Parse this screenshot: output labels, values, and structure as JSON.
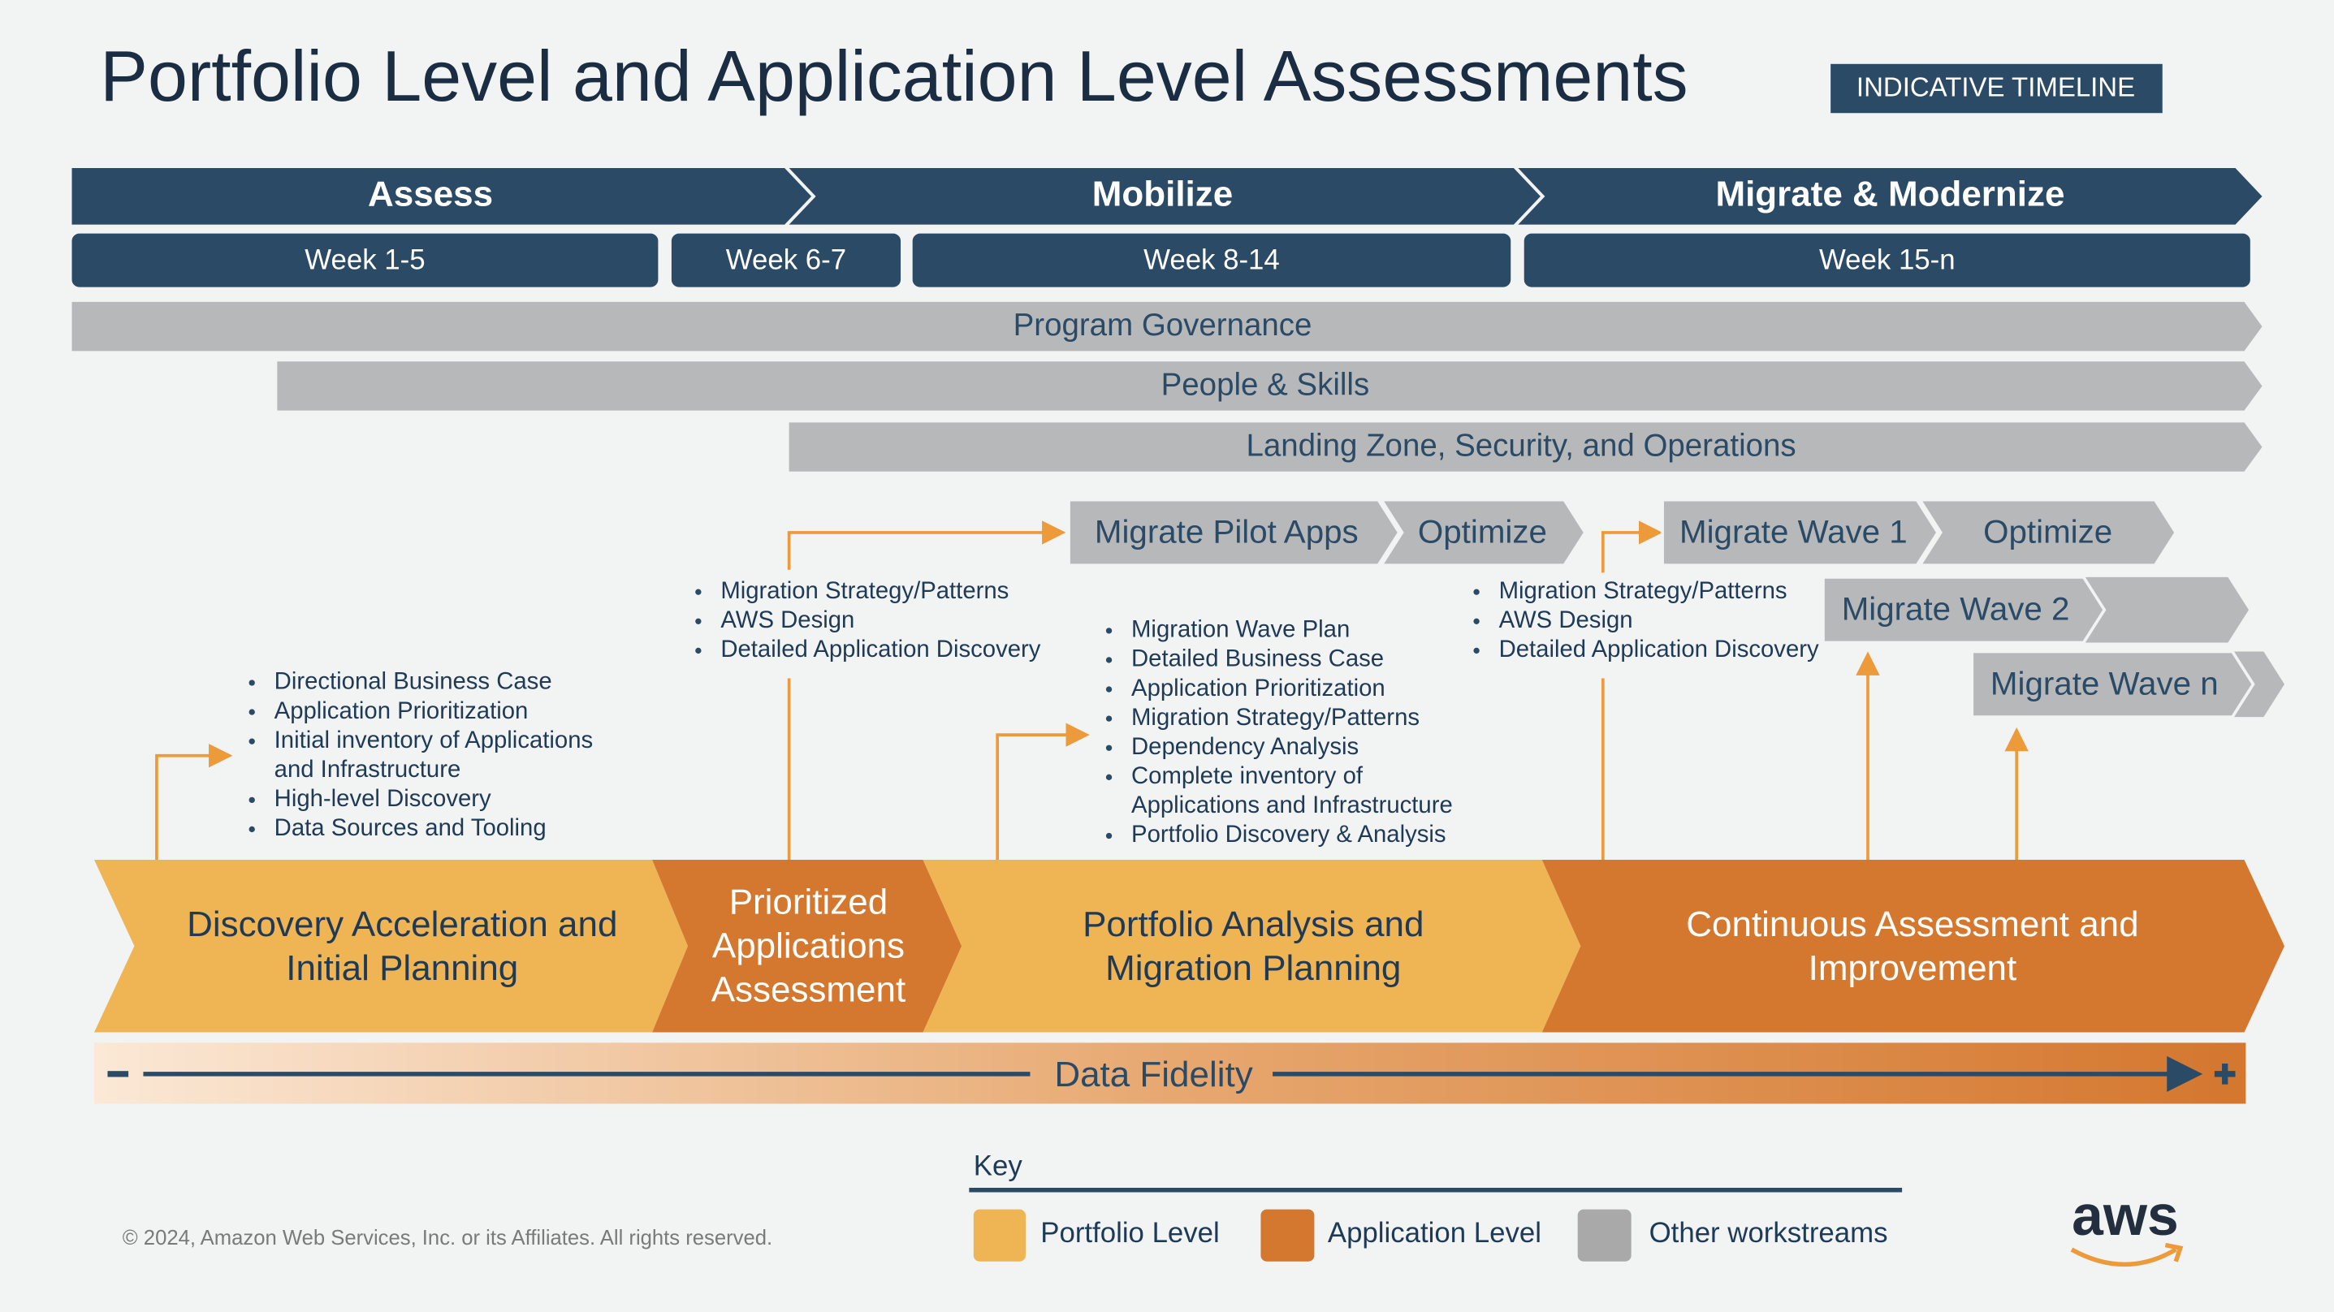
{
  "title": "Portfolio Level and Application Level Assessments",
  "badge": "INDICATIVE TIMELINE",
  "phases": [
    "Assess",
    "Mobilize",
    "Migrate & Modernize"
  ],
  "weeks": [
    "Week 1-5",
    "Week 6-7",
    "Week 8-14",
    "Week 15-n"
  ],
  "workstreams": [
    "Program Governance",
    "People & Skills",
    "Landing Zone, Security, and Operations"
  ],
  "activities": [
    "Migrate Pilot Apps",
    "Optimize",
    "Migrate Wave 1",
    "Optimize",
    "Migrate Wave 2",
    "Migrate Wave n"
  ],
  "bullet_groups": [
    [
      [
        "Directional Business Case"
      ],
      [
        "Application Prioritization"
      ],
      [
        "Initial inventory of Applications",
        "and Infrastructure"
      ],
      [
        "High-level Discovery"
      ],
      [
        "Data Sources and Tooling"
      ]
    ],
    [
      [
        "Migration Strategy/Patterns"
      ],
      [
        "AWS Design"
      ],
      [
        "Detailed Application Discovery"
      ]
    ],
    [
      [
        "Migration Wave Plan"
      ],
      [
        "Detailed Business Case"
      ],
      [
        "Application Prioritization"
      ],
      [
        "Migration Strategy/Patterns"
      ],
      [
        "Dependency Analysis"
      ],
      [
        "Complete inventory of",
        "Applications and Infrastructure"
      ],
      [
        "Portfolio Discovery & Analysis"
      ]
    ],
    [
      [
        "Migration Strategy/Patterns"
      ],
      [
        "AWS Design"
      ],
      [
        "Detailed Application Discovery"
      ]
    ]
  ],
  "stages": [
    [
      "Discovery Acceleration and",
      "Initial Planning"
    ],
    [
      "Prioritized",
      "Applications",
      "Assessment"
    ],
    [
      "Portfolio Analysis and",
      "Migration Planning"
    ],
    [
      "Continuous Assessment and",
      "Improvement"
    ]
  ],
  "fidelity": "Data Fidelity",
  "key": {
    "title": "Key",
    "items": [
      "Portfolio Level",
      "Application Level",
      "Other workstreams"
    ]
  },
  "copyright": "© 2024, Amazon Web Services, Inc. or its Affiliates. All rights reserved.",
  "logo": "aws"
}
